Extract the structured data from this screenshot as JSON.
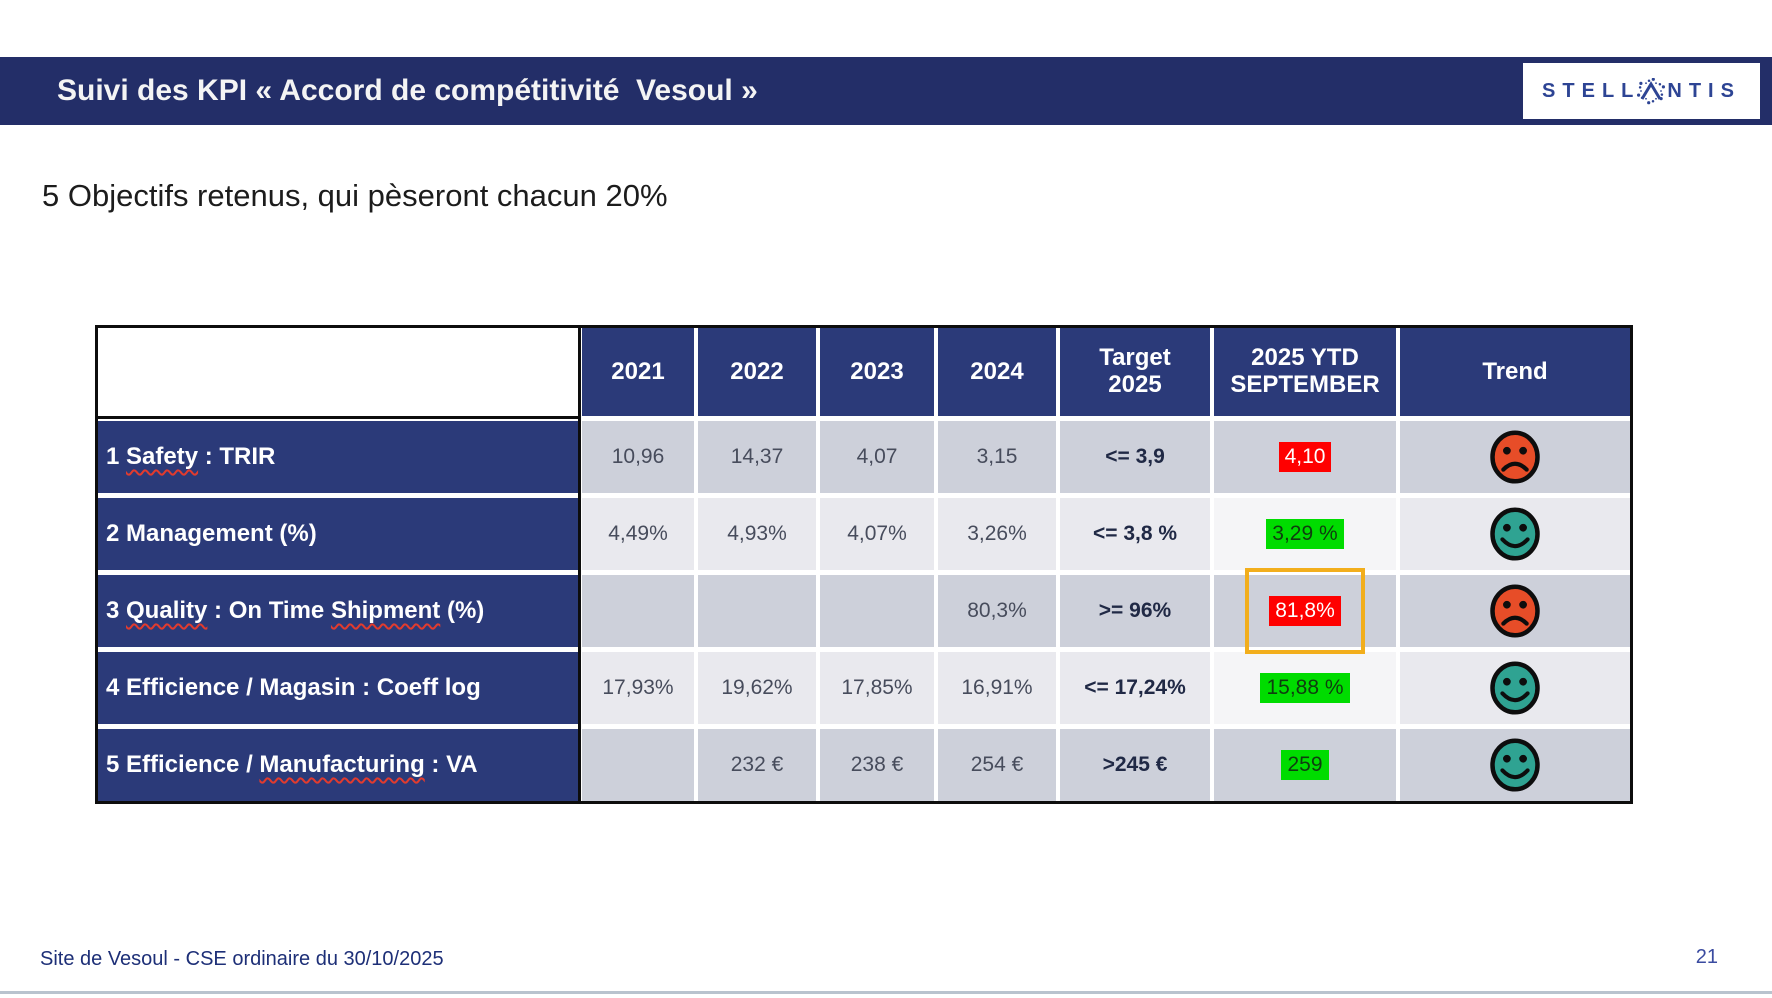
{
  "banner": {
    "title": "Suivi des KPI « Accord de compétitivité  Vesoul »"
  },
  "logo": {
    "brand": "STELLANTIS"
  },
  "subtitle": "5 Objectifs retenus, qui pèseront chacun 20%",
  "table": {
    "columns": [
      "",
      "2021",
      "2022",
      "2023",
      "2024",
      "Target\n2025",
      "2025 YTD\nSEPTEMBER",
      "Trend"
    ],
    "rows": [
      {
        "label_parts": [
          {
            "text": "1 "
          },
          {
            "text": "Safety",
            "misspelled": true
          },
          {
            "text": " : TRIR"
          }
        ],
        "values": [
          "10,96",
          "14,37",
          "4,07",
          "3,15"
        ],
        "target": "<= 3,9",
        "ytd": {
          "text": "4,10",
          "status": "bad",
          "highlight": false
        },
        "trend": "sad"
      },
      {
        "label_parts": [
          {
            "text": "2 Management (%)"
          }
        ],
        "values": [
          "4,49%",
          "4,93%",
          "4,07%",
          "3,26%"
        ],
        "target": "<= 3,8 %",
        "ytd": {
          "text": "3,29 %",
          "status": "good",
          "highlight": false
        },
        "trend": "happy"
      },
      {
        "label_parts": [
          {
            "text": "3 "
          },
          {
            "text": "Quality",
            "misspelled": true
          },
          {
            "text": " : On Time "
          },
          {
            "text": "Shipment",
            "misspelled": true
          },
          {
            "text": " (%)"
          }
        ],
        "values": [
          "",
          "",
          "",
          "80,3%"
        ],
        "target": ">= 96%",
        "ytd": {
          "text": "81,8%",
          "status": "bad",
          "highlight": true
        },
        "trend": "sad"
      },
      {
        "label_parts": [
          {
            "text": "4 Efficience / Magasin : Coeff log"
          }
        ],
        "values": [
          "17,93%",
          "19,62%",
          "17,85%",
          "16,91%"
        ],
        "target": "<= 17,24%",
        "ytd": {
          "text": "15,88 %",
          "status": "good",
          "highlight": false
        },
        "trend": "happy"
      },
      {
        "label_parts": [
          {
            "text": "5 Efficience / "
          },
          {
            "text": "Manufacturing",
            "misspelled": true
          },
          {
            "text": " : VA"
          }
        ],
        "values": [
          "",
          "232 €",
          "238 €",
          "254 €"
        ],
        "target": ">245 €",
        "ytd": {
          "text": "259",
          "status": "good",
          "highlight": false
        },
        "trend": "happy"
      }
    ]
  },
  "footer": {
    "site": "Site de Vesoul - CSE ordinaire du 30/10/2025",
    "page": "21"
  },
  "colors": {
    "banner_navy": "#232e68",
    "table_navy": "#2b3a79",
    "cell_odd": "#cdd0da",
    "cell_even": "#e9e9ee",
    "ytd_even": "#f5f5f7",
    "bad_bg": "#ff0000",
    "bad_text": "#ffffff",
    "good_bg": "#00dc00",
    "good_text": "#0f3d0f",
    "highlight_orange": "#f2ae1c",
    "sad_face": "#e74d28",
    "happy_face": "#2fa392",
    "logo_blue": "#2d4494"
  }
}
